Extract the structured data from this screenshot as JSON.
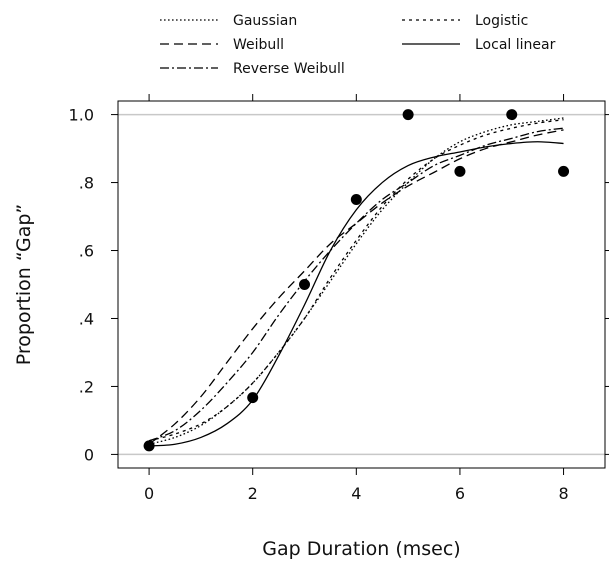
{
  "chart_data": {
    "type": "scatter",
    "xlabel": "Gap Duration (msec)",
    "ylabel": "Proportion “Gap”",
    "xlim": [
      -0.6,
      8.8
    ],
    "ylim": [
      -0.04,
      1.04
    ],
    "x_ticks": [
      0,
      2,
      4,
      6,
      8
    ],
    "x_tick_labels": [
      "0",
      "2",
      "4",
      "6",
      "8"
    ],
    "y_ticks": [
      0,
      0.2,
      0.4,
      0.6,
      0.8,
      1.0
    ],
    "y_tick_labels": [
      "0",
      ".2",
      ".4",
      ".6",
      ".8",
      "1.0"
    ],
    "reference_lines_y": [
      0,
      1.0
    ],
    "legend_position": "top, above plot, two columns",
    "points": {
      "x": [
        0,
        2,
        3,
        4,
        5,
        6,
        7,
        8
      ],
      "y": [
        0.025,
        0.167,
        0.5,
        0.75,
        1.0,
        0.833,
        1.0,
        0.833
      ]
    },
    "series": [
      {
        "name": "Gaussian",
        "dash": "dotted",
        "x": [
          0,
          0.5,
          1,
          1.5,
          2,
          2.5,
          3,
          3.5,
          4,
          4.5,
          5,
          5.5,
          6,
          6.5,
          7,
          7.5,
          8
        ],
        "y": [
          0.03,
          0.05,
          0.085,
          0.14,
          0.21,
          0.3,
          0.4,
          0.51,
          0.62,
          0.72,
          0.8,
          0.87,
          0.92,
          0.95,
          0.97,
          0.98,
          0.99
        ]
      },
      {
        "name": "Weibull",
        "dash": "dashed",
        "x": [
          0,
          0.5,
          1,
          1.5,
          2,
          2.5,
          3,
          3.5,
          4,
          4.5,
          5,
          5.5,
          6,
          6.5,
          7,
          7.5,
          8
        ],
        "y": [
          0.03,
          0.09,
          0.17,
          0.27,
          0.37,
          0.46,
          0.54,
          0.62,
          0.68,
          0.74,
          0.79,
          0.83,
          0.87,
          0.9,
          0.92,
          0.94,
          0.955
        ]
      },
      {
        "name": "Reverse Weibull",
        "dash": "dash-dot",
        "x": [
          0,
          0.5,
          1,
          1.5,
          2,
          2.5,
          3,
          3.5,
          4,
          4.5,
          5,
          5.5,
          6,
          6.5,
          7,
          7.5,
          8
        ],
        "y": [
          0.04,
          0.07,
          0.13,
          0.21,
          0.3,
          0.41,
          0.51,
          0.6,
          0.68,
          0.75,
          0.8,
          0.85,
          0.88,
          0.91,
          0.93,
          0.95,
          0.96
        ]
      },
      {
        "name": "Logistic",
        "dash": "short-dotted",
        "x": [
          0,
          0.5,
          1,
          1.5,
          2,
          2.5,
          3,
          3.5,
          4,
          4.5,
          5,
          5.5,
          6,
          6.5,
          7,
          7.5,
          8
        ],
        "y": [
          0.04,
          0.06,
          0.09,
          0.14,
          0.21,
          0.3,
          0.4,
          0.52,
          0.63,
          0.73,
          0.81,
          0.87,
          0.91,
          0.94,
          0.96,
          0.975,
          0.985
        ]
      },
      {
        "name": "Local linear",
        "dash": "solid",
        "x": [
          0,
          0.5,
          1,
          1.5,
          2,
          2.5,
          3,
          3.5,
          4,
          4.5,
          5,
          5.5,
          6,
          6.5,
          7,
          7.5,
          8
        ],
        "y": [
          0.025,
          0.03,
          0.05,
          0.09,
          0.16,
          0.29,
          0.44,
          0.6,
          0.72,
          0.8,
          0.85,
          0.875,
          0.89,
          0.905,
          0.915,
          0.92,
          0.915
        ]
      }
    ],
    "grid": false
  }
}
